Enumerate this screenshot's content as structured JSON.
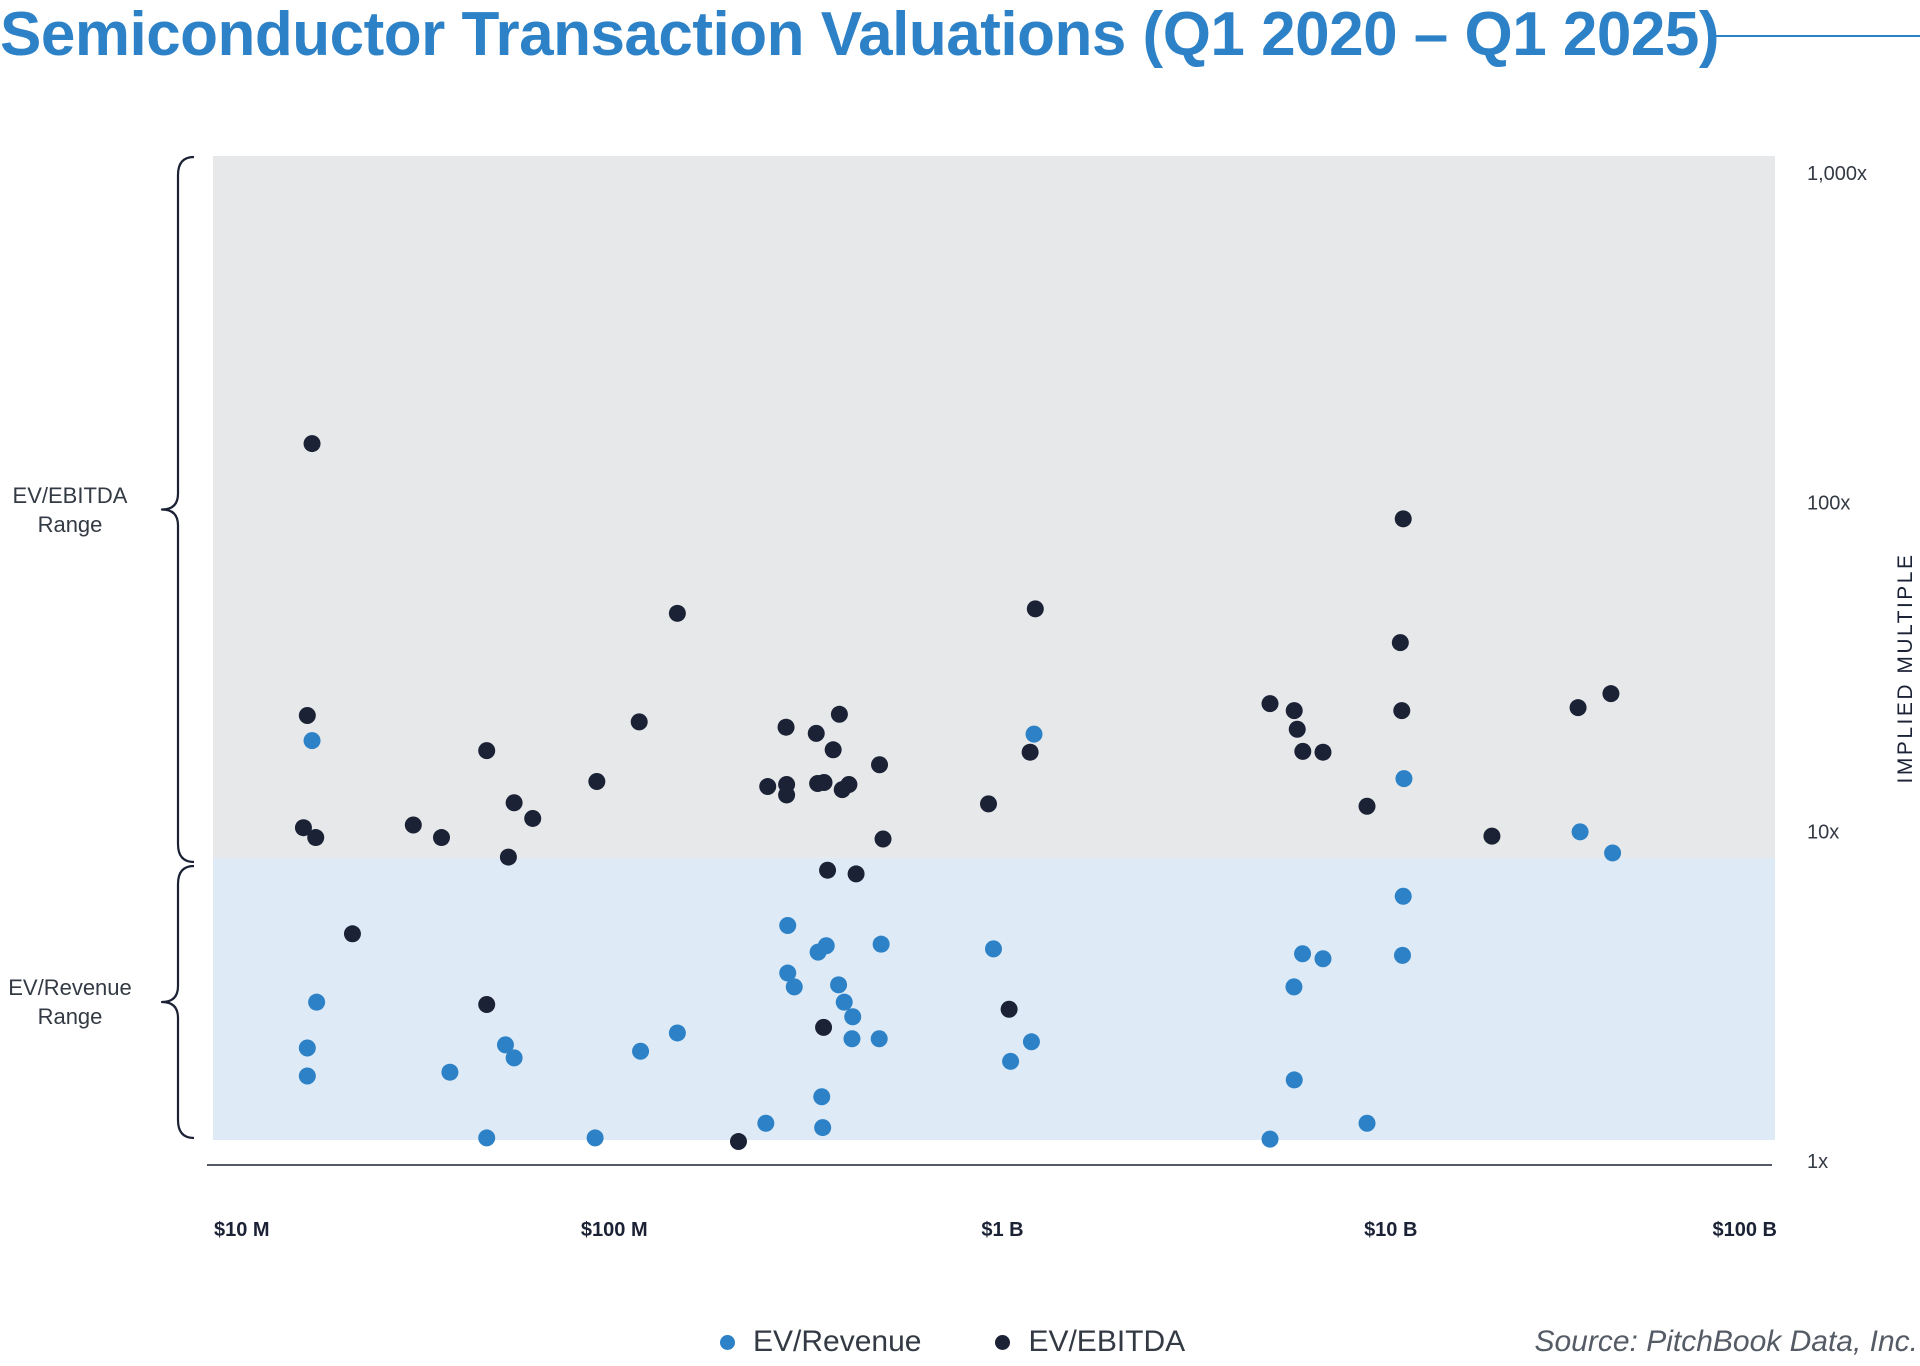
{
  "title": "Semiconductor Transaction Valuations (Q1 2020 – Q1 2025)",
  "range_labels": {
    "ebitda": [
      "EV/EBITDA",
      "Range"
    ],
    "revenue": [
      "EV/Revenue",
      "Range"
    ]
  },
  "legend": [
    {
      "label": "EV/Revenue",
      "color": "#2d81c6"
    },
    {
      "label": "EV/EBITDA",
      "color": "#1b2235"
    }
  ],
  "source": "Source: PitchBook Data, Inc.",
  "colors": {
    "revenue": "#2d81c6",
    "ebitda": "#1b2235",
    "ebitda_band": "#e7e8ea",
    "revenue_band": "#deebf7",
    "title": "#2d81c6"
  },
  "chart_data": {
    "type": "scatter",
    "title": "Semiconductor Transaction Valuations (Q1 2020 – Q1 2025)",
    "xlabel": "",
    "ylabel": "IMPLIED MULTIPLE",
    "x_scale": "log",
    "y_scale": "log",
    "xlim": [
      10,
      100000
    ],
    "ylim": [
      1,
      1000
    ],
    "x_unit": "$M",
    "x_ticks": [
      {
        "value": 10,
        "label": "$10 M"
      },
      {
        "value": 100,
        "label": "$100 M"
      },
      {
        "value": 1000,
        "label": "$1 B"
      },
      {
        "value": 10000,
        "label": "$10 B"
      },
      {
        "value": 100000,
        "label": "$100 B"
      }
    ],
    "y_ticks": [
      {
        "value": 1,
        "label": "1x"
      },
      {
        "value": 10,
        "label": "10x"
      },
      {
        "value": 100,
        "label": "100x"
      },
      {
        "value": 1000,
        "label": "1,000x"
      }
    ],
    "bands": [
      {
        "name": "EV/EBITDA Range",
        "y_from": 8.5,
        "y_to": 1000
      },
      {
        "name": "EV/Revenue Range",
        "y_from": 1.2,
        "y_to": 8.5
      }
    ],
    "legend_position": "bottom",
    "grid": false,
    "series": [
      {
        "name": "EV/Revenue",
        "points": [
          [
            18.1,
            19.3
          ],
          [
            18.6,
            3.1
          ],
          [
            17.6,
            2.25
          ],
          [
            17.6,
            1.85
          ],
          [
            41,
            1.9
          ],
          [
            51,
            1.2
          ],
          [
            57,
            2.3
          ],
          [
            60,
            2.1
          ],
          [
            97,
            1.2
          ],
          [
            127,
            2.2
          ],
          [
            158,
            2.5
          ],
          [
            267,
            1.33
          ],
          [
            304,
            5.3
          ],
          [
            304,
            3.8
          ],
          [
            316,
            3.45
          ],
          [
            364,
            4.4
          ],
          [
            372,
            1.6
          ],
          [
            374,
            1.29
          ],
          [
            382,
            4.6
          ],
          [
            411,
            3.5
          ],
          [
            425,
            3.1
          ],
          [
            445,
            2.4
          ],
          [
            447,
            2.8
          ],
          [
            529,
            4.65
          ],
          [
            523,
            2.4
          ],
          [
            1030,
            4.5
          ],
          [
            1140,
            2.05
          ],
          [
            1290,
            2.35
          ],
          [
            1310,
            20.2
          ],
          [
            5310,
            1.19
          ],
          [
            6130,
            1.8
          ],
          [
            6120,
            3.45
          ],
          [
            6440,
            4.35
          ],
          [
            7270,
            4.2
          ],
          [
            9440,
            1.33
          ],
          [
            11650,
            4.3
          ],
          [
            11700,
            6.5
          ],
          [
            11750,
            14.8
          ],
          [
            33400,
            10.2
          ],
          [
            40500,
            8.8
          ]
        ]
      },
      {
        "name": "EV/EBITDA",
        "points": [
          [
            18.1,
            154
          ],
          [
            17.6,
            23
          ],
          [
            17.2,
            10.5
          ],
          [
            18.5,
            9.8
          ],
          [
            23,
            5
          ],
          [
            33,
            10.7
          ],
          [
            39,
            9.8
          ],
          [
            51,
            18
          ],
          [
            58,
            8.55
          ],
          [
            60,
            12.5
          ],
          [
            67,
            11.2
          ],
          [
            98,
            14.5
          ],
          [
            126,
            22
          ],
          [
            158,
            47
          ],
          [
            51,
            3.05
          ],
          [
            227,
            1.17
          ],
          [
            270,
            14
          ],
          [
            301,
            21.2
          ],
          [
            302,
            14.2
          ],
          [
            302,
            13.2
          ],
          [
            360,
            20.3
          ],
          [
            363,
            14.3
          ],
          [
            377,
            14.4
          ],
          [
            385,
            7.8
          ],
          [
            376,
            2.6
          ],
          [
            398,
            18.1
          ],
          [
            413,
            23.2
          ],
          [
            420,
            13.7
          ],
          [
            437,
            14.2
          ],
          [
            456,
            7.6
          ],
          [
            524,
            16.3
          ],
          [
            535,
            9.7
          ],
          [
            1000,
            12.4
          ],
          [
            1130,
            2.95
          ],
          [
            1280,
            17.8
          ],
          [
            1320,
            48.5
          ],
          [
            5310,
            25
          ],
          [
            6130,
            23.8
          ],
          [
            6240,
            20.9
          ],
          [
            6450,
            17.9
          ],
          [
            7270,
            17.8
          ],
          [
            9440,
            12.2
          ],
          [
            11500,
            38.3
          ],
          [
            11600,
            23.8
          ],
          [
            11700,
            91
          ],
          [
            19800,
            9.9
          ],
          [
            33000,
            24.3
          ],
          [
            40100,
            26.8
          ]
        ]
      }
    ]
  }
}
